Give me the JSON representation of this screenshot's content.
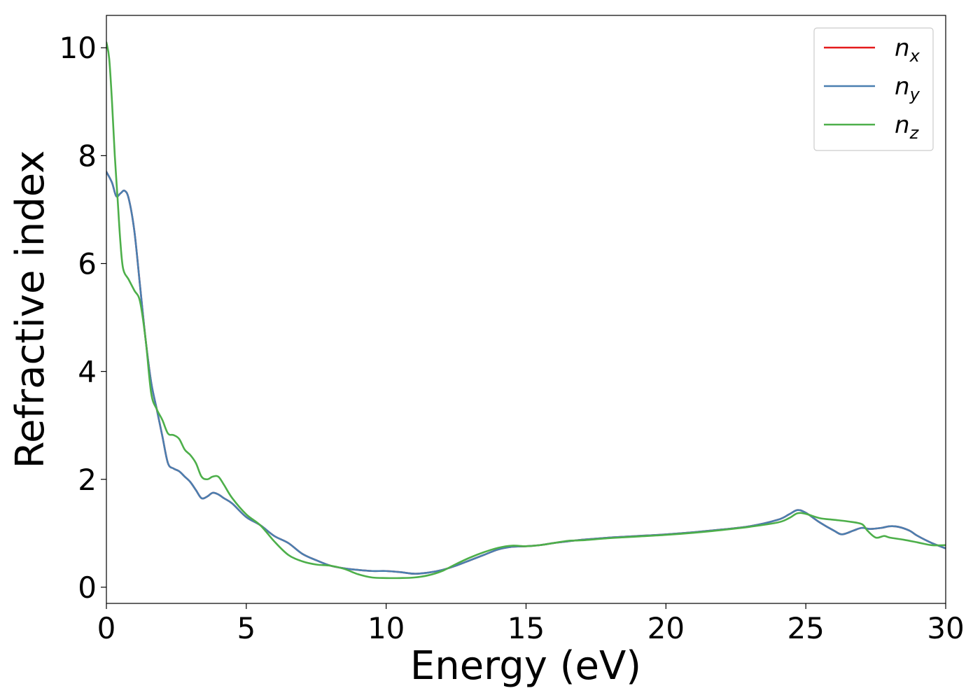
{
  "chart_data": {
    "type": "line",
    "xlabel": "Energy (eV)",
    "ylabel": "Refractive index",
    "xlim": [
      0,
      30
    ],
    "ylim": [
      -0.3,
      10.6
    ],
    "xticks": [
      0,
      5,
      10,
      15,
      20,
      25,
      30
    ],
    "yticks": [
      0,
      2,
      4,
      6,
      8,
      10
    ],
    "grid": false,
    "legend_position": "top-right",
    "series": [
      {
        "name": "n",
        "subscript": "x",
        "color": "#e41a1c",
        "x": [
          0,
          0.2,
          0.35,
          0.5,
          0.65,
          0.8,
          1.0,
          1.2,
          1.4,
          1.6,
          1.8,
          2.0,
          2.2,
          2.4,
          2.6,
          2.8,
          3.0,
          3.2,
          3.4,
          3.6,
          3.8,
          4.0,
          4.2,
          4.5,
          5.0,
          5.5,
          6.0,
          6.5,
          7.0,
          7.5,
          8.0,
          8.5,
          9.0,
          9.5,
          10.0,
          10.5,
          11.0,
          11.5,
          12.0,
          12.5,
          13.0,
          13.5,
          14.0,
          14.5,
          15.0,
          15.5,
          16.0,
          16.5,
          17.0,
          18.0,
          19.0,
          20.0,
          21.0,
          22.0,
          23.0,
          24.0,
          24.4,
          24.7,
          25.0,
          25.5,
          26.0,
          26.3,
          26.7,
          27.0,
          27.3,
          27.7,
          28.0,
          28.3,
          28.7,
          29.0,
          29.5,
          30.0
        ],
        "values": [
          7.7,
          7.5,
          7.25,
          7.3,
          7.35,
          7.2,
          6.6,
          5.6,
          4.6,
          3.8,
          3.3,
          2.8,
          2.3,
          2.2,
          2.15,
          2.05,
          1.95,
          1.8,
          1.65,
          1.68,
          1.75,
          1.72,
          1.65,
          1.55,
          1.3,
          1.15,
          0.95,
          0.82,
          0.62,
          0.5,
          0.4,
          0.35,
          0.32,
          0.3,
          0.3,
          0.28,
          0.25,
          0.27,
          0.32,
          0.4,
          0.5,
          0.6,
          0.7,
          0.75,
          0.76,
          0.78,
          0.82,
          0.85,
          0.88,
          0.92,
          0.95,
          0.98,
          1.02,
          1.07,
          1.13,
          1.25,
          1.35,
          1.43,
          1.38,
          1.2,
          1.05,
          0.98,
          1.05,
          1.1,
          1.08,
          1.1,
          1.13,
          1.12,
          1.05,
          0.95,
          0.82,
          0.72
        ]
      },
      {
        "name": "n",
        "subscript": "y",
        "color": "#4a7fb0",
        "x": [
          0,
          0.2,
          0.35,
          0.5,
          0.65,
          0.8,
          1.0,
          1.2,
          1.4,
          1.6,
          1.8,
          2.0,
          2.2,
          2.4,
          2.6,
          2.8,
          3.0,
          3.2,
          3.4,
          3.6,
          3.8,
          4.0,
          4.2,
          4.5,
          5.0,
          5.5,
          6.0,
          6.5,
          7.0,
          7.5,
          8.0,
          8.5,
          9.0,
          9.5,
          10.0,
          10.5,
          11.0,
          11.5,
          12.0,
          12.5,
          13.0,
          13.5,
          14.0,
          14.5,
          15.0,
          15.5,
          16.0,
          16.5,
          17.0,
          18.0,
          19.0,
          20.0,
          21.0,
          22.0,
          23.0,
          24.0,
          24.4,
          24.7,
          25.0,
          25.5,
          26.0,
          26.3,
          26.7,
          27.0,
          27.3,
          27.7,
          28.0,
          28.3,
          28.7,
          29.0,
          29.5,
          30.0
        ],
        "values": [
          7.7,
          7.5,
          7.25,
          7.3,
          7.35,
          7.2,
          6.6,
          5.6,
          4.6,
          3.8,
          3.3,
          2.8,
          2.3,
          2.2,
          2.15,
          2.05,
          1.95,
          1.8,
          1.65,
          1.68,
          1.75,
          1.72,
          1.65,
          1.55,
          1.3,
          1.15,
          0.95,
          0.82,
          0.62,
          0.5,
          0.4,
          0.35,
          0.32,
          0.3,
          0.3,
          0.28,
          0.25,
          0.27,
          0.32,
          0.4,
          0.5,
          0.6,
          0.7,
          0.75,
          0.76,
          0.78,
          0.82,
          0.85,
          0.88,
          0.92,
          0.95,
          0.98,
          1.02,
          1.07,
          1.13,
          1.25,
          1.35,
          1.43,
          1.38,
          1.2,
          1.05,
          0.98,
          1.05,
          1.1,
          1.08,
          1.1,
          1.13,
          1.12,
          1.05,
          0.95,
          0.82,
          0.72
        ]
      },
      {
        "name": "n",
        "subscript": "z",
        "color": "#4daf4a",
        "x": [
          0,
          0.1,
          0.2,
          0.3,
          0.4,
          0.5,
          0.6,
          0.8,
          1.0,
          1.2,
          1.4,
          1.6,
          1.8,
          2.0,
          2.2,
          2.4,
          2.6,
          2.8,
          3.0,
          3.2,
          3.4,
          3.6,
          3.8,
          4.0,
          4.2,
          4.5,
          5.0,
          5.5,
          6.0,
          6.5,
          7.0,
          7.5,
          8.0,
          8.5,
          9.0,
          9.5,
          10.0,
          10.5,
          11.0,
          11.5,
          12.0,
          12.5,
          13.0,
          13.5,
          14.0,
          14.5,
          15.0,
          15.5,
          16.0,
          16.5,
          17.0,
          18.0,
          19.0,
          20.0,
          21.0,
          22.0,
          23.0,
          24.0,
          24.4,
          24.7,
          25.0,
          25.5,
          26.0,
          26.5,
          27.0,
          27.2,
          27.5,
          27.8,
          28.0,
          28.5,
          29.0,
          29.5,
          30.0
        ],
        "values": [
          10.1,
          9.8,
          9.0,
          8.0,
          7.2,
          6.4,
          5.9,
          5.7,
          5.5,
          5.3,
          4.6,
          3.6,
          3.3,
          3.1,
          2.85,
          2.82,
          2.75,
          2.55,
          2.45,
          2.3,
          2.05,
          2.0,
          2.05,
          2.05,
          1.9,
          1.65,
          1.35,
          1.15,
          0.85,
          0.6,
          0.48,
          0.42,
          0.4,
          0.34,
          0.24,
          0.18,
          0.17,
          0.17,
          0.18,
          0.22,
          0.3,
          0.43,
          0.55,
          0.65,
          0.73,
          0.77,
          0.76,
          0.78,
          0.82,
          0.86,
          0.87,
          0.91,
          0.94,
          0.97,
          1.01,
          1.06,
          1.12,
          1.2,
          1.28,
          1.37,
          1.36,
          1.28,
          1.25,
          1.22,
          1.17,
          1.05,
          0.92,
          0.95,
          0.92,
          0.88,
          0.83,
          0.78,
          0.78
        ]
      }
    ]
  }
}
